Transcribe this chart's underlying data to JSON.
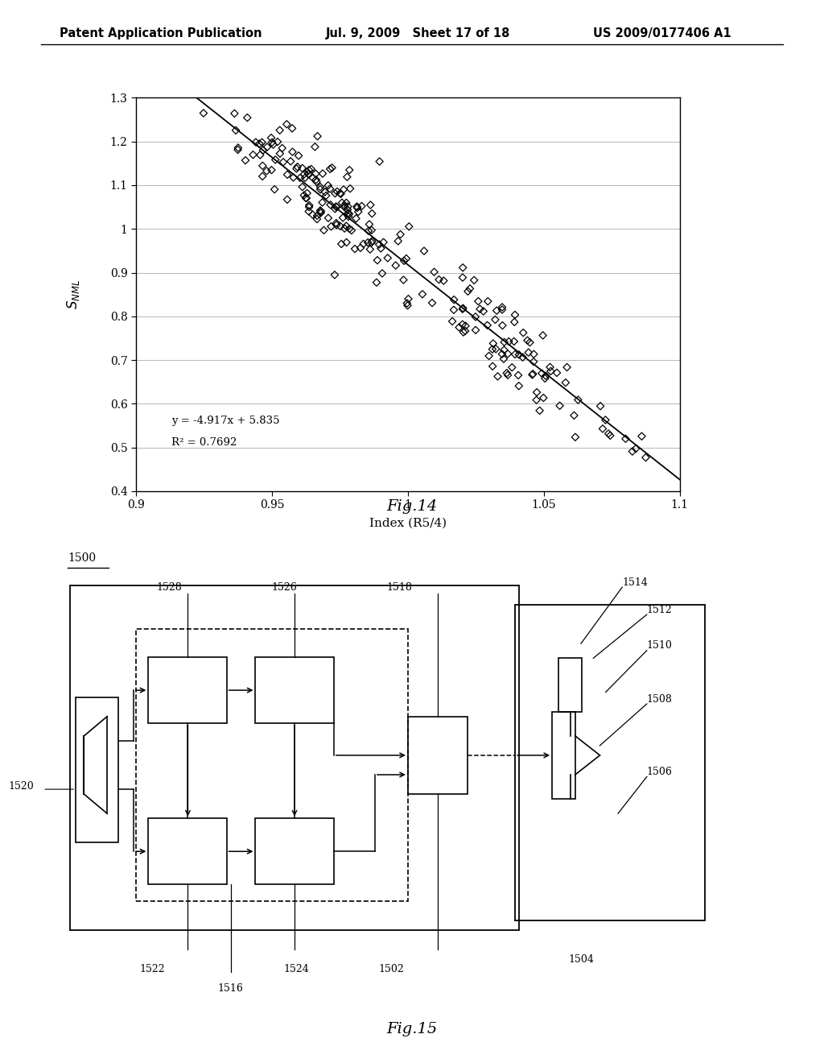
{
  "header_left": "Patent Application Publication",
  "header_mid": "Jul. 9, 2009   Sheet 17 of 18",
  "header_right": "US 2009/0177406 A1",
  "fig14_title": "Fig.14",
  "fig14_xlabel": "Index (R5/4)",
  "fig14_ylabel": "S",
  "fig14_ylabel_sub": "NML",
  "fig14_xlim": [
    0.9,
    1.1
  ],
  "fig14_ylim": [
    0.4,
    1.3
  ],
  "fig14_xticks": [
    0.9,
    0.95,
    1.0,
    1.05,
    1.1
  ],
  "fig14_yticks": [
    0.4,
    0.5,
    0.6,
    0.7,
    0.8,
    0.9,
    1.0,
    1.1,
    1.2,
    1.3
  ],
  "fig14_eq": "y = -4.917x + 5.835",
  "fig14_r2": "R² = 0.7692",
  "fig14_slope": -4.917,
  "fig14_intercept": 5.835,
  "fig15_title": "Fig.15",
  "background": "#ffffff",
  "scatter_color": "#000000",
  "line_color": "#000000"
}
